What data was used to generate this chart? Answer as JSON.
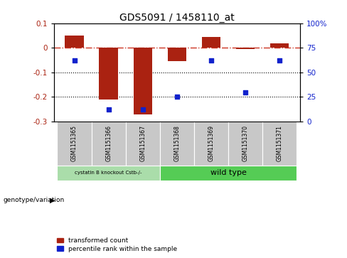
{
  "title": "GDS5091 / 1458110_at",
  "samples": [
    "GSM1151365",
    "GSM1151366",
    "GSM1151367",
    "GSM1151368",
    "GSM1151369",
    "GSM1151370",
    "GSM1151371"
  ],
  "transformed_count": [
    0.05,
    -0.21,
    -0.27,
    -0.055,
    0.045,
    -0.005,
    0.018
  ],
  "percentile_rank": [
    62,
    12,
    12,
    25,
    62,
    30,
    62
  ],
  "left_ylim": [
    -0.3,
    0.1
  ],
  "right_ylim": [
    0,
    100
  ],
  "left_yticks": [
    -0.3,
    -0.2,
    -0.1,
    0.0,
    0.1
  ],
  "right_yticks": [
    0,
    25,
    50,
    75,
    100
  ],
  "right_yticklabels": [
    "0",
    "25",
    "50",
    "75",
    "100%"
  ],
  "bar_color": "#aa2211",
  "dot_color": "#1122cc",
  "hline_color": "#cc3322",
  "hline_y": 0.0,
  "dotted_lines": [
    -0.1,
    -0.2
  ],
  "bar_width": 0.55,
  "legend_bar_label": "transformed count",
  "legend_dot_label": "percentile rank within the sample",
  "genotype_label": "genotype/variation",
  "group1_label": "cystatin B knockout Cstb-/-",
  "group1_color": "#aaddaa",
  "group2_label": "wild type",
  "group2_color": "#55cc55",
  "tick_box_color": "#c8c8c8"
}
